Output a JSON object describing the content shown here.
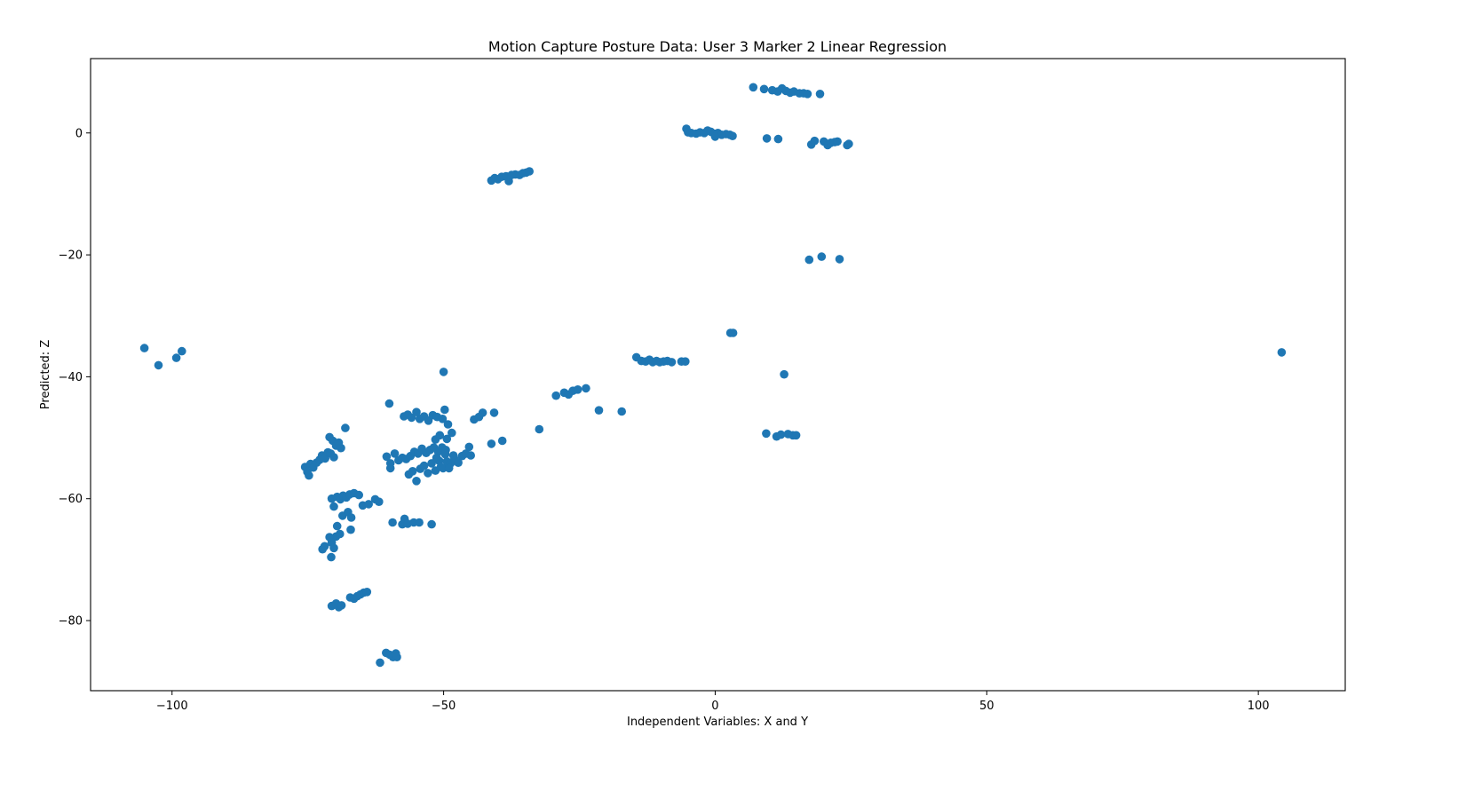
{
  "chart_data": {
    "type": "scatter",
    "title": "Motion Capture Posture Data: User 3 Marker 2 Linear Regression",
    "xlabel": "Independent Variables: X and Y",
    "ylabel": "Predicted: Z",
    "xlim": [
      -115,
      116
    ],
    "ylim": [
      -91.5,
      12.2
    ],
    "xticks": [
      -100,
      -50,
      0,
      50,
      100
    ],
    "xtick_labels": [
      "−100",
      "−50",
      "0",
      "50",
      "100"
    ],
    "yticks": [
      0,
      -20,
      -40,
      -60,
      -80
    ],
    "ytick_labels": [
      "0",
      "−20",
      "−40",
      "−60",
      "−80"
    ],
    "grid": false,
    "marker_color": "#1f77b4",
    "series": [
      {
        "points": [
          [
            7,
            7.5
          ],
          [
            9,
            7.2
          ],
          [
            10.5,
            7
          ],
          [
            11.5,
            6.8
          ],
          [
            12.3,
            7.3
          ],
          [
            13,
            6.9
          ],
          [
            13.8,
            6.6
          ],
          [
            14.5,
            6.8
          ],
          [
            15.5,
            6.5
          ],
          [
            16.3,
            6.5
          ],
          [
            17,
            6.4
          ],
          [
            19.3,
            6.4
          ],
          [
            -5.3,
            0.7
          ],
          [
            -5,
            0.1
          ],
          [
            -4.4,
            0
          ],
          [
            -3.5,
            -0.1
          ],
          [
            -2.8,
            0.1
          ],
          [
            -2,
            0
          ],
          [
            -1.4,
            0.4
          ],
          [
            -0.8,
            0.2
          ],
          [
            -0.2,
            -0.1
          ],
          [
            0.5,
            0
          ],
          [
            1.2,
            -0.3
          ],
          [
            2,
            -0.2
          ],
          [
            2.7,
            -0.3
          ],
          [
            3.2,
            -0.5
          ],
          [
            0,
            -0.6
          ],
          [
            9.5,
            -0.9
          ],
          [
            11.6,
            -1
          ],
          [
            17.7,
            -1.9
          ],
          [
            18.3,
            -1.3
          ],
          [
            20,
            -1.4
          ],
          [
            20.7,
            -2
          ],
          [
            21.3,
            -1.6
          ],
          [
            22,
            -1.5
          ],
          [
            22.5,
            -1.4
          ],
          [
            24.3,
            -2
          ],
          [
            24.6,
            -1.8
          ],
          [
            -41.2,
            -7.8
          ],
          [
            -40.6,
            -7.4
          ],
          [
            -40,
            -7.6
          ],
          [
            -39.3,
            -7.2
          ],
          [
            -38.5,
            -7.1
          ],
          [
            -38,
            -7.9
          ],
          [
            -37.5,
            -6.9
          ],
          [
            -36.8,
            -6.8
          ],
          [
            -36,
            -6.9
          ],
          [
            -35.4,
            -6.6
          ],
          [
            -34.8,
            -6.5
          ],
          [
            -34.2,
            -6.3
          ],
          [
            17.3,
            -20.8
          ],
          [
            19.6,
            -20.3
          ],
          [
            22.9,
            -20.7
          ],
          [
            -105.1,
            -35.3
          ],
          [
            -102.5,
            -38.1
          ],
          [
            -99.2,
            -36.9
          ],
          [
            -98.2,
            -35.8
          ],
          [
            104.3,
            -36
          ],
          [
            2.8,
            -32.8
          ],
          [
            3.3,
            -32.8
          ],
          [
            -14.5,
            -36.8
          ],
          [
            -13.6,
            -37.4
          ],
          [
            -12.8,
            -37.5
          ],
          [
            -12.1,
            -37.2
          ],
          [
            -11.5,
            -37.6
          ],
          [
            -10.8,
            -37.4
          ],
          [
            -10.2,
            -37.6
          ],
          [
            -9.5,
            -37.5
          ],
          [
            -8.8,
            -37.4
          ],
          [
            -8,
            -37.6
          ],
          [
            -6.2,
            -37.5
          ],
          [
            -5.5,
            -37.5
          ],
          [
            12.7,
            -39.6
          ],
          [
            -29.3,
            -43.1
          ],
          [
            -27.8,
            -42.6
          ],
          [
            -27,
            -42.9
          ],
          [
            -26.2,
            -42.3
          ],
          [
            -25.3,
            -42.1
          ],
          [
            -23.8,
            -41.9
          ],
          [
            -21.4,
            -45.5
          ],
          [
            -17.2,
            -45.7
          ],
          [
            -32.4,
            -48.6
          ],
          [
            9.4,
            -49.3
          ],
          [
            11.3,
            -49.8
          ],
          [
            12.1,
            -49.5
          ],
          [
            13.4,
            -49.4
          ],
          [
            14.3,
            -49.6
          ],
          [
            14.9,
            -49.6
          ],
          [
            -60,
            -44.4
          ],
          [
            -50,
            -39.2
          ],
          [
            -57.3,
            -46.5
          ],
          [
            -56.6,
            -46.2
          ],
          [
            -55.9,
            -46.7
          ],
          [
            -55,
            -45.8
          ],
          [
            -54.4,
            -46.9
          ],
          [
            -53.6,
            -46.5
          ],
          [
            -52.8,
            -47.2
          ],
          [
            -52,
            -46.3
          ],
          [
            -51.2,
            -46.6
          ],
          [
            -50.2,
            -46.9
          ],
          [
            -49.8,
            -45.4
          ],
          [
            -44.4,
            -47
          ],
          [
            -43.5,
            -46.6
          ],
          [
            -42.8,
            -45.9
          ],
          [
            -40.7,
            -45.9
          ],
          [
            -49.2,
            -47.8
          ],
          [
            -48.5,
            -49.2
          ],
          [
            -51.5,
            -50.3
          ],
          [
            -50.7,
            -49.6
          ],
          [
            -49.4,
            -50.2
          ],
          [
            -41.2,
            -51
          ],
          [
            -39.2,
            -50.5
          ],
          [
            -60.5,
            -53.1
          ],
          [
            -59.8,
            -54.2
          ],
          [
            -59,
            -52.6
          ],
          [
            -58.3,
            -53.7
          ],
          [
            -57.6,
            -53.3
          ],
          [
            -56.9,
            -53.5
          ],
          [
            -56.1,
            -53
          ],
          [
            -55.4,
            -52.3
          ],
          [
            -54.7,
            -52.6
          ],
          [
            -54,
            -51.8
          ],
          [
            -53.2,
            -52.5
          ],
          [
            -52.5,
            -52
          ],
          [
            -51.8,
            -51.6
          ],
          [
            -51,
            -52.3
          ],
          [
            -50.3,
            -51.6
          ],
          [
            -49.6,
            -52
          ],
          [
            -56.4,
            -56
          ],
          [
            -55.7,
            -55.5
          ],
          [
            -55,
            -57.1
          ],
          [
            -54.3,
            -55.1
          ],
          [
            -53.6,
            -54.6
          ],
          [
            -52.9,
            -55.8
          ],
          [
            -52.2,
            -54.2
          ],
          [
            -51.5,
            -55.4
          ],
          [
            -50.8,
            -53.8
          ],
          [
            -50.1,
            -55
          ],
          [
            -49.4,
            -53.9
          ],
          [
            -48.7,
            -54.2
          ],
          [
            -48,
            -53.5
          ],
          [
            -47.3,
            -54.1
          ],
          [
            -46.6,
            -53
          ],
          [
            -45.9,
            -52.6
          ],
          [
            -45.3,
            -51.5
          ],
          [
            -45,
            -52.9
          ],
          [
            -51.3,
            -53.3
          ],
          [
            -50.5,
            -54.8
          ],
          [
            -49.7,
            -52.7
          ],
          [
            -49,
            -55
          ],
          [
            -48.2,
            -52.9
          ],
          [
            -59.8,
            -55
          ],
          [
            -75.5,
            -54.8
          ],
          [
            -75.1,
            -55.6
          ],
          [
            -74.8,
            -56.2
          ],
          [
            -74.5,
            -54.3
          ],
          [
            -74,
            -54.9
          ],
          [
            -73.4,
            -54.1
          ],
          [
            -72.8,
            -53.6
          ],
          [
            -72.4,
            -52.9
          ],
          [
            -71.8,
            -53.4
          ],
          [
            -71.3,
            -52.4
          ],
          [
            -70.8,
            -52.6
          ],
          [
            -70.2,
            -53.2
          ],
          [
            -71,
            -49.9
          ],
          [
            -70.4,
            -50.5
          ],
          [
            -69.8,
            -51.3
          ],
          [
            -69.3,
            -50.8
          ],
          [
            -68.9,
            -51.7
          ],
          [
            -68.1,
            -48.4
          ],
          [
            -70.6,
            -60
          ],
          [
            -70.2,
            -61.3
          ],
          [
            -69.6,
            -59.7
          ],
          [
            -69,
            -60.1
          ],
          [
            -68.5,
            -59.5
          ],
          [
            -67.9,
            -59.8
          ],
          [
            -67.3,
            -59.3
          ],
          [
            -66.5,
            -59.1
          ],
          [
            -65.6,
            -59.4
          ],
          [
            -64.9,
            -61.1
          ],
          [
            -63.8,
            -60.9
          ],
          [
            -62.6,
            -60.1
          ],
          [
            -61.9,
            -60.5
          ],
          [
            -68.6,
            -62.8
          ],
          [
            -67.6,
            -62.2
          ],
          [
            -67,
            -63.1
          ],
          [
            -69.6,
            -64.5
          ],
          [
            -67.1,
            -65.1
          ],
          [
            -69.8,
            -66.2
          ],
          [
            -69.1,
            -65.8
          ],
          [
            -71,
            -66.3
          ],
          [
            -70.6,
            -67.2
          ],
          [
            -70.2,
            -68.1
          ],
          [
            -72.3,
            -68.3
          ],
          [
            -71.9,
            -67.8
          ],
          [
            -70.7,
            -69.6
          ],
          [
            -59.4,
            -63.9
          ],
          [
            -57.6,
            -64.2
          ],
          [
            -57.2,
            -63.3
          ],
          [
            -56.6,
            -64.1
          ],
          [
            -55.5,
            -63.9
          ],
          [
            -54.5,
            -63.9
          ],
          [
            -52.2,
            -64.2
          ],
          [
            -70.6,
            -77.6
          ],
          [
            -69.8,
            -77.2
          ],
          [
            -69.3,
            -77.8
          ],
          [
            -68.8,
            -77.5
          ],
          [
            -67.2,
            -76.2
          ],
          [
            -66.5,
            -76.4
          ],
          [
            -65.9,
            -76
          ],
          [
            -65.3,
            -75.7
          ],
          [
            -64.7,
            -75.4
          ],
          [
            -64.1,
            -75.3
          ],
          [
            -61.7,
            -86.9
          ],
          [
            -60.6,
            -85.3
          ],
          [
            -59.9,
            -85.6
          ],
          [
            -59.3,
            -86
          ],
          [
            -58.8,
            -85.4
          ],
          [
            -58.6,
            -86
          ]
        ]
      }
    ]
  }
}
